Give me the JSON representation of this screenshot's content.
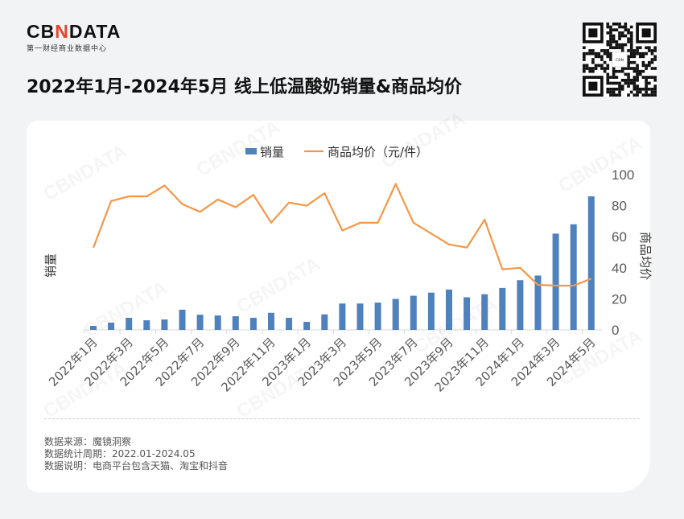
{
  "brand": {
    "logo_text_pre": "CB",
    "logo_text_x": "N",
    "logo_text_post": "DATA",
    "tagline": "第一财经商业数据中心"
  },
  "title": "2022年1月-2024年5月 线上低温酸奶销量&商品均价",
  "qr_code": "qr-code",
  "chart_data": {
    "type": "bar+line",
    "title": "",
    "categories": [
      "2022年1月",
      "2022年2月",
      "2022年3月",
      "2022年4月",
      "2022年5月",
      "2022年6月",
      "2022年7月",
      "2022年8月",
      "2022年9月",
      "2022年10月",
      "2022年11月",
      "2022年12月",
      "2023年1月",
      "2023年2月",
      "2023年3月",
      "2023年4月",
      "2023年5月",
      "2023年6月",
      "2023年7月",
      "2023年8月",
      "2023年9月",
      "2023年10月",
      "2023年11月",
      "2023年12月",
      "2024年1月",
      "2024年2月",
      "2024年3月",
      "2024年4月",
      "2024年5月"
    ],
    "xtick_labels": [
      "2022年1月",
      "2022年3月",
      "2022年5月",
      "2022年7月",
      "2022年9月",
      "2022年11月",
      "2023年1月",
      "2023年3月",
      "2023年5月",
      "2023年7月",
      "2023年9月",
      "2023年11月",
      "2024年1月",
      "2024年3月",
      "2024年5月"
    ],
    "series": [
      {
        "name": "销量",
        "type": "bar",
        "axis": "left",
        "color": "#4f81bd",
        "values": [
          2.6,
          4.7,
          7.8,
          6.2,
          6.7,
          13,
          9.8,
          9.3,
          8.8,
          7.8,
          11,
          7.8,
          5.2,
          10,
          17,
          17,
          17.6,
          20,
          22,
          24,
          26,
          21,
          23,
          27,
          32,
          35,
          62,
          68,
          86
        ]
      },
      {
        "name": "商品均价（元/件）",
        "type": "line",
        "axis": "right",
        "color": "#f79646",
        "values": [
          53,
          83,
          86,
          86,
          93,
          81,
          76,
          84,
          79,
          87,
          69,
          82,
          80,
          88,
          64,
          69,
          69,
          94,
          69,
          62,
          55,
          53,
          71,
          39,
          40,
          29,
          28.5,
          28.5,
          33
        ]
      }
    ],
    "ylabel_left": "销量",
    "ylabel_right": "商品均价",
    "ylim_right": [
      0,
      100
    ],
    "yticks_right": [
      0,
      20,
      40,
      60,
      80,
      100
    ],
    "left_axis_ticks": "hidden",
    "grid": false,
    "legend": "top"
  },
  "notes": [
    "数据来源：魔镜洞察",
    "数据统计周期：2022.01-2024.05",
    "数据说明：电商平台包含天猫、淘宝和抖音"
  ],
  "watermark": "CBNDATA"
}
